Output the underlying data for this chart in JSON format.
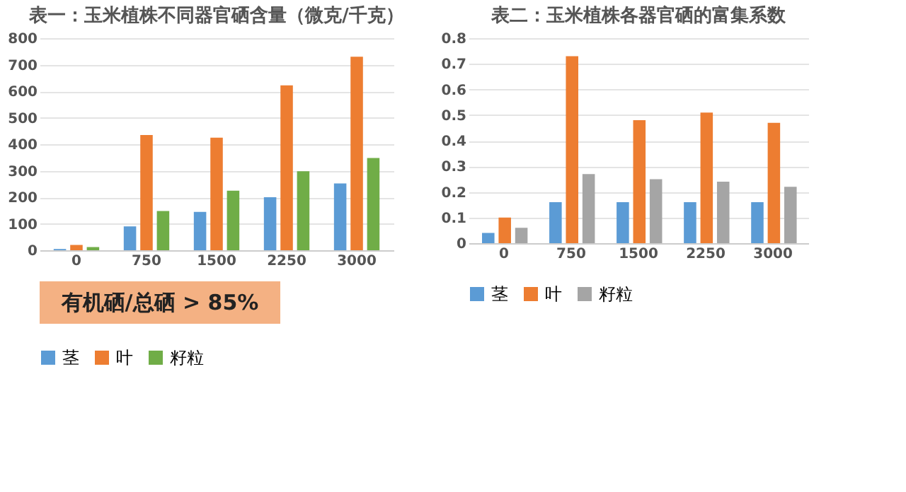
{
  "chart_data": [
    {
      "type": "bar",
      "title": "表一：玉米植株不同器官硒含量（微克/千克）",
      "categories": [
        "0",
        "750",
        "1500",
        "2250",
        "3000"
      ],
      "series": [
        {
          "name": "茎",
          "color": "#5b9bd5",
          "values": [
            5,
            90,
            145,
            200,
            252
          ]
        },
        {
          "name": "叶",
          "color": "#ed7d31",
          "values": [
            20,
            435,
            425,
            622,
            730
          ]
        },
        {
          "name": "籽粒",
          "color": "#70ad47",
          "values": [
            12,
            148,
            225,
            298,
            348
          ]
        }
      ],
      "ylim": [
        0,
        800
      ],
      "yticks": [
        0,
        100,
        200,
        300,
        400,
        500,
        600,
        700,
        800
      ],
      "grid": "y",
      "legend": "bottom"
    },
    {
      "type": "bar",
      "title": "表二：玉米植株各器官硒的富集系数",
      "categories": [
        "0",
        "750",
        "1500",
        "2250",
        "3000"
      ],
      "series": [
        {
          "name": "茎",
          "color": "#5b9bd5",
          "values": [
            0.04,
            0.16,
            0.16,
            0.16,
            0.16
          ]
        },
        {
          "name": "叶",
          "color": "#ed7d31",
          "values": [
            0.1,
            0.73,
            0.48,
            0.51,
            0.47
          ]
        },
        {
          "name": "籽粒",
          "color": "#a5a5a5",
          "values": [
            0.06,
            0.27,
            0.25,
            0.24,
            0.22
          ]
        }
      ],
      "ylim": [
        0,
        0.8
      ],
      "yticks": [
        0,
        0.1,
        0.2,
        0.3,
        0.4,
        0.5,
        0.6,
        0.7,
        0.8
      ],
      "grid": "y",
      "legend": "bottom"
    },
    {
      "type": "other",
      "annotations": [
        "有机硒/总硒 > 85%"
      ]
    }
  ]
}
